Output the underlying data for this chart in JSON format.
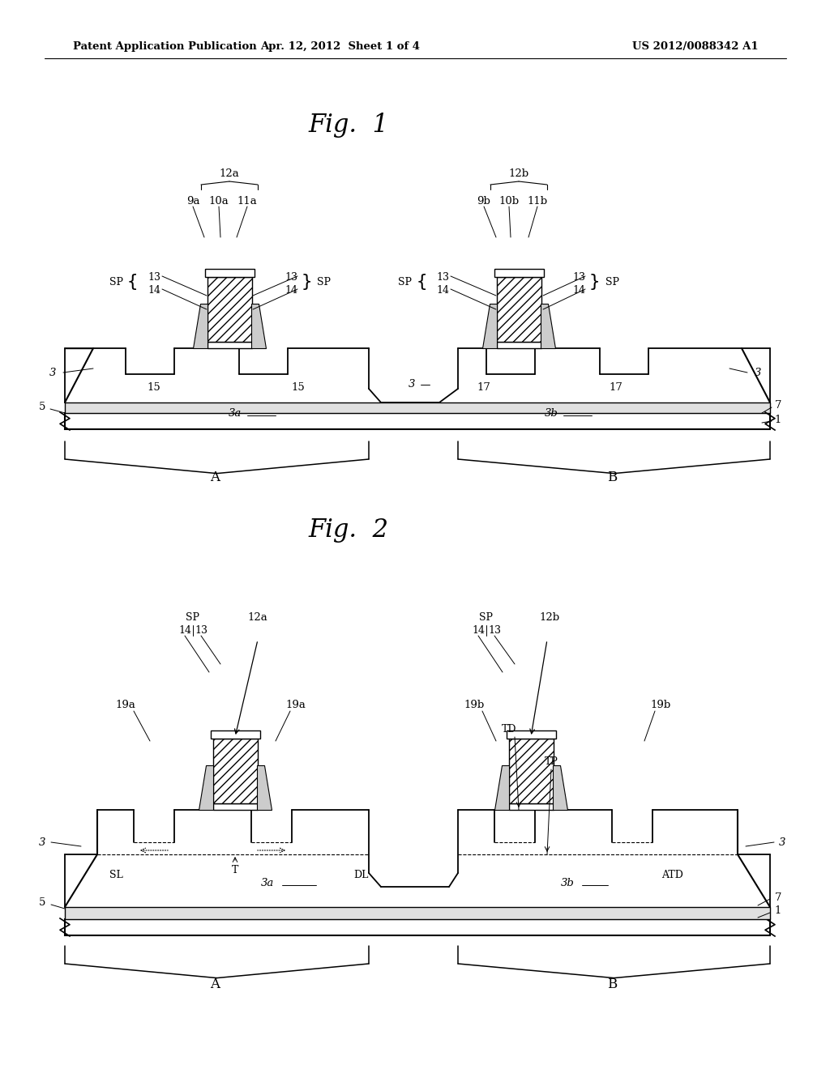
{
  "header_left": "Patent Application Publication",
  "header_mid": "Apr. 12, 2012  Sheet 1 of 4",
  "header_right": "US 2012/0088342 A1",
  "fig1_title": "Fig.  1",
  "fig2_title": "Fig.  2",
  "bg_color": "#ffffff",
  "line_color": "#000000"
}
